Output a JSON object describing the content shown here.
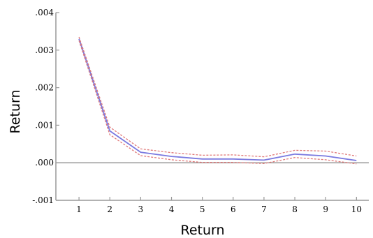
{
  "chart_data": {
    "type": "line",
    "title": "",
    "xlabel": "Return",
    "ylabel": "Return",
    "x": [
      1,
      2,
      3,
      4,
      5,
      6,
      7,
      8,
      9,
      10
    ],
    "x_tick_labels": [
      "1",
      "2",
      "3",
      "4",
      "5",
      "6",
      "7",
      "8",
      "9",
      "10"
    ],
    "ylim": [
      -0.001,
      0.004
    ],
    "y_ticks": [
      -0.001,
      0.0,
      0.001,
      0.002,
      0.003,
      0.004
    ],
    "y_tick_labels": [
      "-.001",
      ".000",
      ".001",
      ".002",
      ".003",
      ".004"
    ],
    "series": [
      {
        "values": [
          0.0033,
          0.00085,
          0.00028,
          0.00017,
          0.0001,
          0.0001,
          7e-05,
          0.00023,
          0.00018,
          6e-05
        ],
        "color": "#7a7ae0",
        "style": "solid"
      },
      {
        "values": [
          0.00335,
          0.00095,
          0.00037,
          0.00027,
          0.0002,
          0.00021,
          0.00016,
          0.00033,
          0.00031,
          0.00018
        ],
        "color": "#e07a7a",
        "style": "dashed"
      },
      {
        "values": [
          0.00325,
          0.00075,
          0.00019,
          8e-05,
          1e-05,
          1e-05,
          -2e-05,
          0.00014,
          8e-05,
          -3e-05
        ],
        "color": "#e07a7a",
        "style": "dashed"
      }
    ],
    "zero_line": true,
    "grid": false,
    "legend": "none"
  }
}
